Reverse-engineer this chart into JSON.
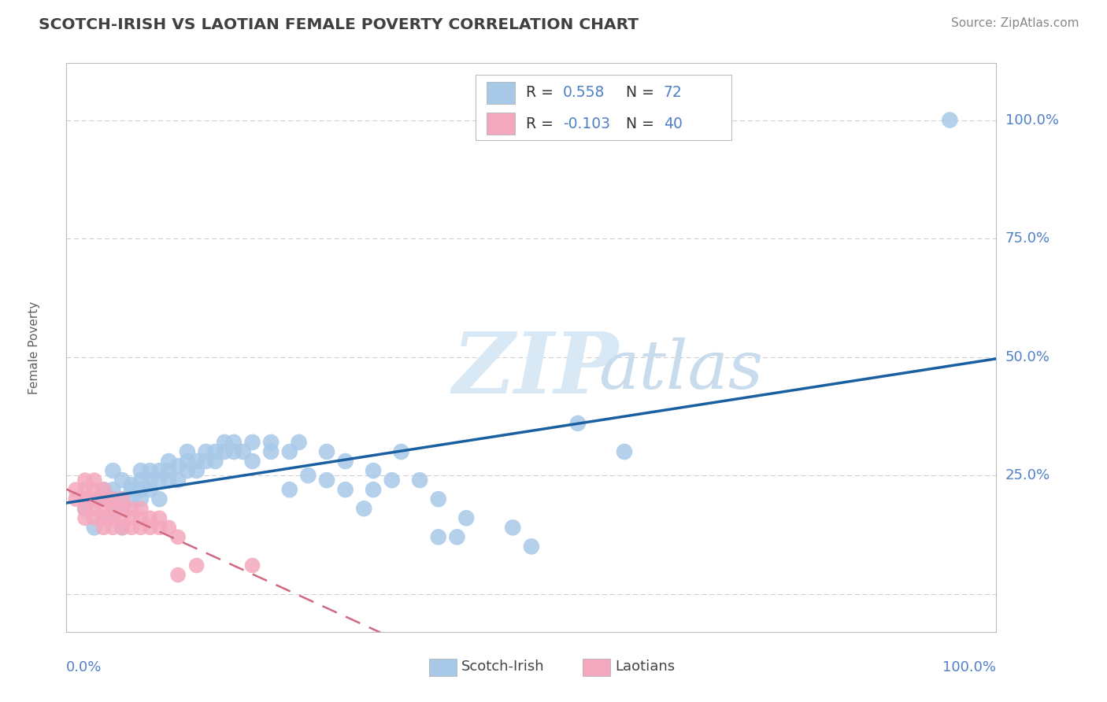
{
  "title": "SCOTCH-IRISH VS LAOTIAN FEMALE POVERTY CORRELATION CHART",
  "source": "Source: ZipAtlas.com",
  "ylabel": "Female Poverty",
  "y_ticks": [
    0,
    25,
    50,
    75,
    100
  ],
  "y_tick_labels": [
    "",
    "25.0%",
    "50.0%",
    "75.0%",
    "100.0%"
  ],
  "x_range": [
    0,
    100
  ],
  "y_range": [
    -8,
    112
  ],
  "scotch_irish_R": "0.558",
  "scotch_irish_N": "72",
  "laotian_R": "-0.103",
  "laotian_N": "40",
  "scotch_irish_color": "#a8c8e8",
  "scotch_irish_line_color": "#1a5fa0",
  "laotian_color": "#f4a8be",
  "laotian_line_color": "#d06880",
  "background_color": "#ffffff",
  "grid_color": "#cccccc",
  "title_color": "#404040",
  "axis_label_color": "#5080c8",
  "legend_color": "#5080c8",
  "watermark_ZIP_color": "#d8e8f4",
  "watermark_atlas_color": "#c8dced",
  "scotch_irish_label": "Scotch-Irish",
  "laotian_label": "Laotians",
  "scotch_irish_points": [
    [
      2,
      18
    ],
    [
      3,
      14
    ],
    [
      4,
      16
    ],
    [
      4,
      20
    ],
    [
      4,
      22
    ],
    [
      5,
      17
    ],
    [
      5,
      20
    ],
    [
      5,
      22
    ],
    [
      5,
      26
    ],
    [
      6,
      14
    ],
    [
      6,
      18
    ],
    [
      6,
      20
    ],
    [
      6,
      24
    ],
    [
      7,
      20
    ],
    [
      7,
      22
    ],
    [
      7,
      23
    ],
    [
      8,
      20
    ],
    [
      8,
      22
    ],
    [
      8,
      24
    ],
    [
      8,
      26
    ],
    [
      9,
      22
    ],
    [
      9,
      24
    ],
    [
      9,
      26
    ],
    [
      10,
      20
    ],
    [
      10,
      24
    ],
    [
      10,
      26
    ],
    [
      11,
      24
    ],
    [
      11,
      26
    ],
    [
      11,
      28
    ],
    [
      12,
      24
    ],
    [
      12,
      27
    ],
    [
      13,
      26
    ],
    [
      13,
      28
    ],
    [
      13,
      30
    ],
    [
      14,
      26
    ],
    [
      14,
      28
    ],
    [
      15,
      28
    ],
    [
      15,
      30
    ],
    [
      16,
      28
    ],
    [
      16,
      30
    ],
    [
      17,
      30
    ],
    [
      17,
      32
    ],
    [
      18,
      30
    ],
    [
      18,
      32
    ],
    [
      19,
      30
    ],
    [
      20,
      28
    ],
    [
      20,
      32
    ],
    [
      22,
      30
    ],
    [
      22,
      32
    ],
    [
      24,
      22
    ],
    [
      24,
      30
    ],
    [
      25,
      32
    ],
    [
      26,
      25
    ],
    [
      28,
      24
    ],
    [
      28,
      30
    ],
    [
      30,
      22
    ],
    [
      30,
      28
    ],
    [
      32,
      18
    ],
    [
      33,
      22
    ],
    [
      33,
      26
    ],
    [
      35,
      24
    ],
    [
      36,
      30
    ],
    [
      38,
      24
    ],
    [
      40,
      12
    ],
    [
      40,
      20
    ],
    [
      42,
      12
    ],
    [
      43,
      16
    ],
    [
      48,
      14
    ],
    [
      50,
      10
    ],
    [
      55,
      36
    ],
    [
      60,
      30
    ],
    [
      95,
      100
    ]
  ],
  "laotian_points": [
    [
      1,
      20
    ],
    [
      1,
      22
    ],
    [
      2,
      16
    ],
    [
      2,
      18
    ],
    [
      2,
      20
    ],
    [
      2,
      22
    ],
    [
      2,
      24
    ],
    [
      3,
      16
    ],
    [
      3,
      18
    ],
    [
      3,
      20
    ],
    [
      3,
      22
    ],
    [
      3,
      24
    ],
    [
      4,
      14
    ],
    [
      4,
      16
    ],
    [
      4,
      18
    ],
    [
      4,
      20
    ],
    [
      4,
      22
    ],
    [
      5,
      14
    ],
    [
      5,
      16
    ],
    [
      5,
      18
    ],
    [
      5,
      20
    ],
    [
      6,
      14
    ],
    [
      6,
      16
    ],
    [
      6,
      18
    ],
    [
      6,
      20
    ],
    [
      7,
      14
    ],
    [
      7,
      16
    ],
    [
      7,
      18
    ],
    [
      8,
      14
    ],
    [
      8,
      16
    ],
    [
      8,
      18
    ],
    [
      9,
      14
    ],
    [
      9,
      16
    ],
    [
      10,
      14
    ],
    [
      10,
      16
    ],
    [
      11,
      14
    ],
    [
      12,
      4
    ],
    [
      12,
      12
    ],
    [
      14,
      6
    ],
    [
      20,
      6
    ]
  ]
}
